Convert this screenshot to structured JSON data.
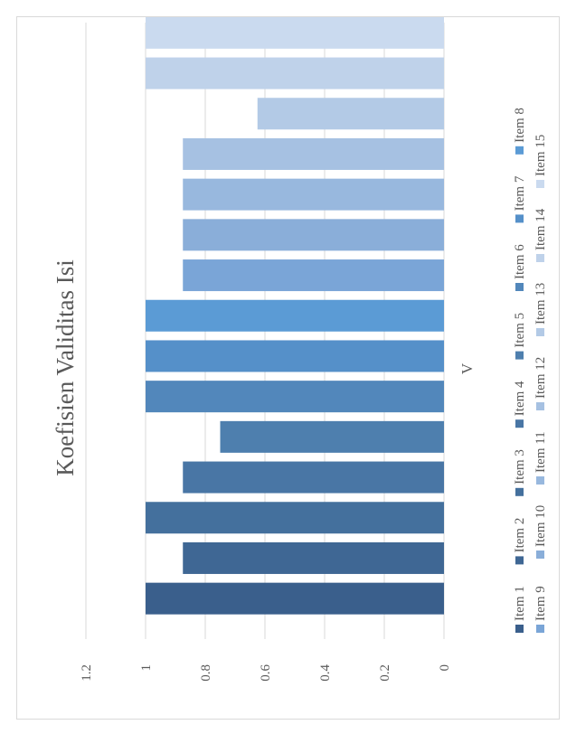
{
  "chart_data": {
    "type": "bar",
    "title": "Koefisien Validitas Isi",
    "categories": [
      "V"
    ],
    "ylim": [
      0,
      1.2
    ],
    "y_ticks": [
      "0",
      "0.2",
      "0.4",
      "0.6",
      "0.8",
      "1",
      "1.2"
    ],
    "grid": true,
    "legend_position": "bottom",
    "series": [
      {
        "name": "Item 1",
        "values": [
          1
        ],
        "color": "#3a5f8c"
      },
      {
        "name": "Item 2",
        "values": [
          0.875
        ],
        "color": "#3f6794"
      },
      {
        "name": "Item 3",
        "values": [
          1
        ],
        "color": "#44709d"
      },
      {
        "name": "Item 4",
        "values": [
          0.875
        ],
        "color": "#4976a5"
      },
      {
        "name": "Item 5",
        "values": [
          0.75
        ],
        "color": "#4e7fae"
      },
      {
        "name": "Item 6",
        "values": [
          1
        ],
        "color": "#5287bb"
      },
      {
        "name": "Item 7",
        "values": [
          1
        ],
        "color": "#5590c9"
      },
      {
        "name": "Item 8",
        "values": [
          1
        ],
        "color": "#5b9bd5"
      },
      {
        "name": "Item 9",
        "values": [
          0.875
        ],
        "color": "#7aa5d7"
      },
      {
        "name": "Item 10",
        "values": [
          0.875
        ],
        "color": "#8aaed9"
      },
      {
        "name": "Item 11",
        "values": [
          0.875
        ],
        "color": "#98b8de"
      },
      {
        "name": "Item 12",
        "values": [
          0.875
        ],
        "color": "#a6c1e2"
      },
      {
        "name": "Item 13",
        "values": [
          0.625
        ],
        "color": "#b3cae6"
      },
      {
        "name": "Item 14",
        "values": [
          1
        ],
        "color": "#bfd2ea"
      },
      {
        "name": "Item 15",
        "values": [
          1
        ],
        "color": "#cadaef"
      }
    ]
  }
}
